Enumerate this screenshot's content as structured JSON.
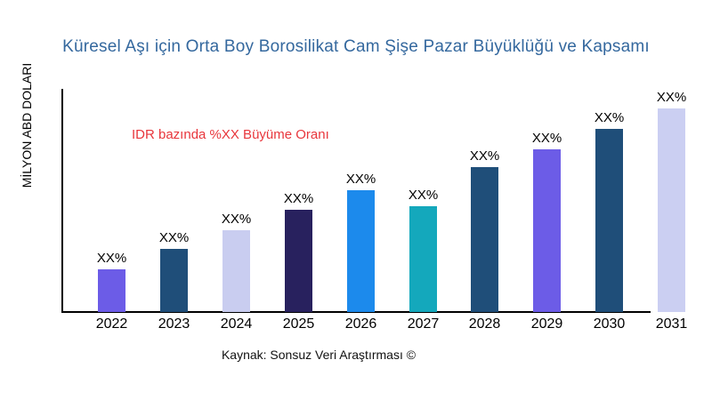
{
  "chart_data": {
    "type": "bar",
    "title": "Küresel Aşı için Orta Boy Borosilikat Cam Şişe Pazar Büyüklüğü ve Kapsamı",
    "title_color": "#34689E",
    "ylabel": "MİLYON ABD DOLARI",
    "xlabel": "",
    "categories": [
      "2022",
      "2023",
      "2024",
      "2025",
      "2026",
      "2027",
      "2028",
      "2029",
      "2030",
      "2031"
    ],
    "bar_value_labels": [
      "XX%",
      "XX%",
      "XX%",
      "XX%",
      "XX%",
      "XX%",
      "XX%",
      "XX%",
      "XX%",
      "XX%"
    ],
    "values_percent_of_max": [
      21,
      31,
      40,
      50,
      60,
      52,
      71,
      80,
      90,
      100
    ],
    "bar_colors": [
      "#6C5CE7",
      "#1F4E79",
      "#C9CDF0",
      "#28215E",
      "#1C8AEC",
      "#14A8BC",
      "#1F4E79",
      "#6C5CE7",
      "#1F4E79",
      "#CBCFF2"
    ],
    "annotation": {
      "text": "IDR bazında %XX Büyüme Oranı",
      "color": "#E8363C"
    },
    "source": "Kaynak: Sonsuz Veri Araştırması ©",
    "axis_color": "#000000",
    "grid": false,
    "legend": false
  }
}
